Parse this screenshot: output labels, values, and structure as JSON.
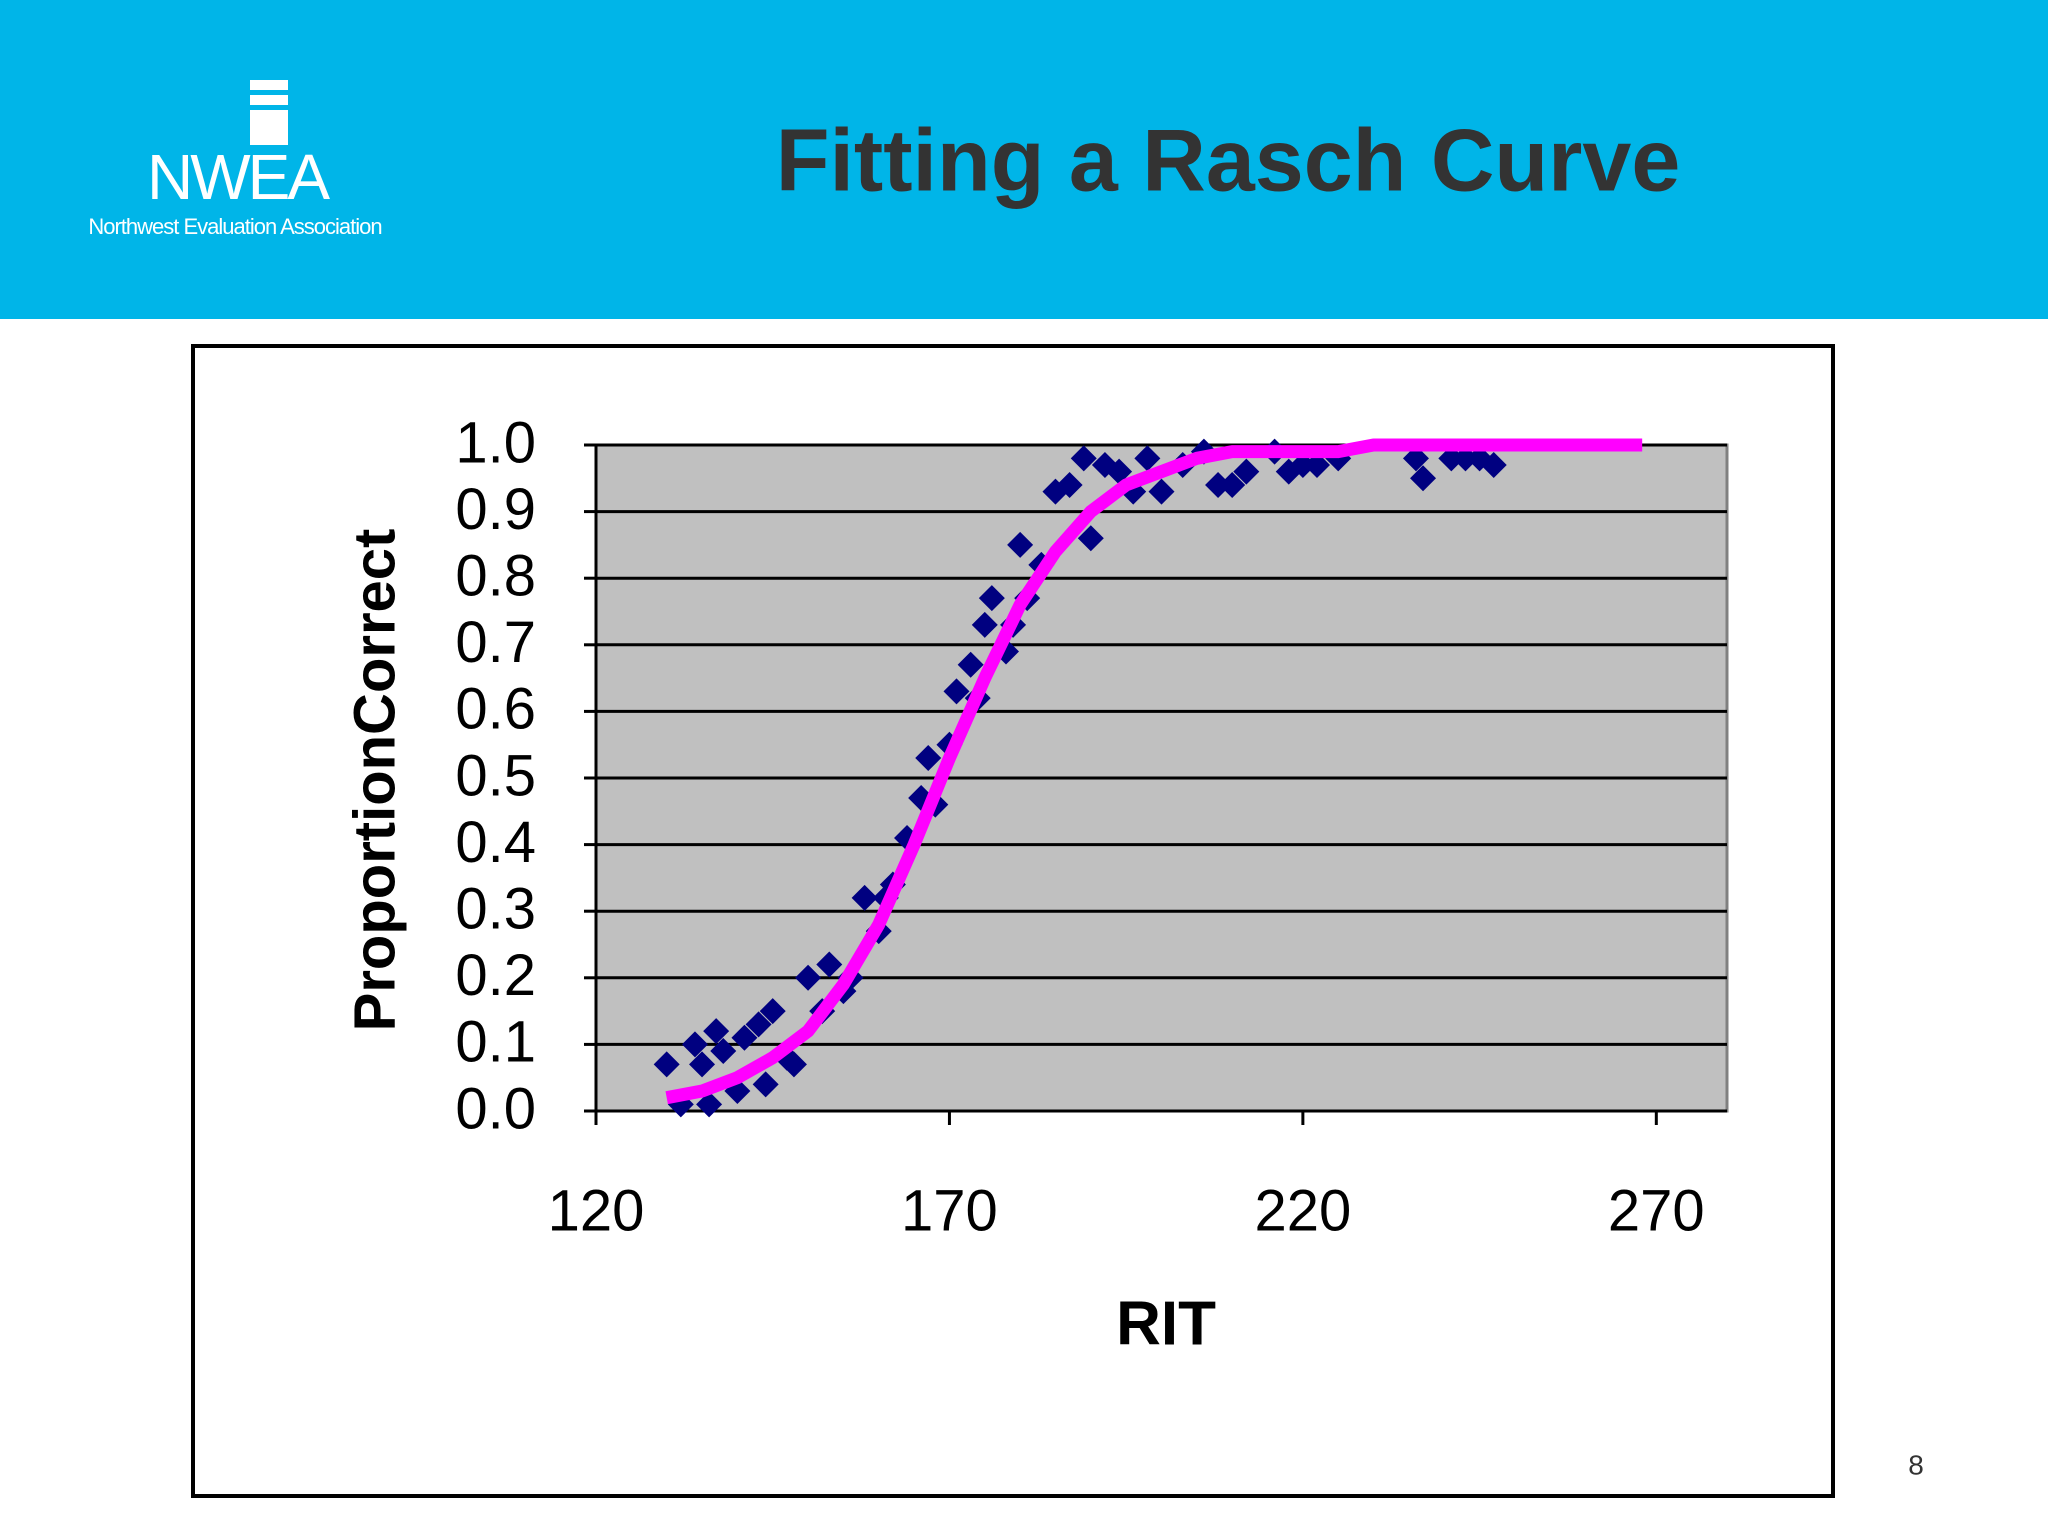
{
  "header": {
    "title": "Fitting a Rasch Curve",
    "logo": "NWEA",
    "logo_subtitle": "Northwest Evaluation Association"
  },
  "page_number": "8",
  "chart_data": {
    "type": "scatter",
    "xlabel": "RIT",
    "ylabel": "ProportionCorrect",
    "xlim": [
      120,
      280
    ],
    "ylim": [
      0,
      1
    ],
    "xticks": [
      120,
      170,
      220,
      270
    ],
    "yticks": [
      {
        "value": 0,
        "label": "0.0"
      },
      0.1,
      0.2,
      0.3,
      0.4,
      0.5,
      0.6,
      0.7,
      0.8,
      0.9,
      {
        "value": 1,
        "label": "1.0"
      }
    ],
    "grid": true,
    "series": [
      {
        "type": "scatter",
        "color": "#000080",
        "x": [
          130,
          132,
          134,
          135,
          136,
          137,
          138,
          140,
          141,
          143,
          144,
          145,
          147,
          148,
          150,
          152,
          153,
          155,
          156,
          158,
          160,
          161,
          162,
          164,
          166,
          167,
          168,
          170,
          171,
          173,
          174,
          175,
          176,
          178,
          179,
          180,
          181,
          183,
          185,
          187,
          189,
          190,
          192,
          194,
          196,
          198,
          200,
          203,
          206,
          208,
          210,
          212,
          216,
          218,
          220,
          222,
          225,
          236,
          237,
          241,
          243,
          245,
          247
        ],
        "values": [
          0.07,
          0.01,
          0.1,
          0.07,
          0.01,
          0.12,
          0.09,
          0.03,
          0.11,
          0.13,
          0.04,
          0.15,
          0.08,
          0.07,
          0.2,
          0.15,
          0.22,
          0.18,
          0.2,
          0.32,
          0.27,
          0.32,
          0.34,
          0.41,
          0.47,
          0.53,
          0.46,
          0.55,
          0.63,
          0.67,
          0.62,
          0.73,
          0.77,
          0.69,
          0.73,
          0.85,
          0.77,
          0.82,
          0.93,
          0.94,
          0.98,
          0.86,
          0.97,
          0.96,
          0.93,
          0.98,
          0.93,
          0.97,
          0.99,
          0.94,
          0.94,
          0.96,
          0.99,
          0.96,
          0.97,
          0.97,
          0.98,
          0.98,
          0.95,
          0.98,
          0.98,
          0.98,
          0.97
        ]
      },
      {
        "type": "line",
        "color": "#ff00ff",
        "x": [
          130,
          135,
          140,
          145,
          150,
          155,
          160,
          165,
          170,
          175,
          180,
          185,
          190,
          195,
          200,
          205,
          210,
          215,
          220,
          225,
          230,
          235,
          240,
          245,
          250,
          255,
          260,
          265,
          268
        ],
        "values": [
          0.02,
          0.03,
          0.05,
          0.08,
          0.12,
          0.19,
          0.28,
          0.4,
          0.53,
          0.65,
          0.76,
          0.84,
          0.9,
          0.94,
          0.96,
          0.98,
          0.99,
          0.99,
          0.99,
          0.99,
          1.0,
          1.0,
          1.0,
          1.0,
          1.0,
          1.0,
          1.0,
          1.0,
          1.0
        ]
      }
    ]
  }
}
